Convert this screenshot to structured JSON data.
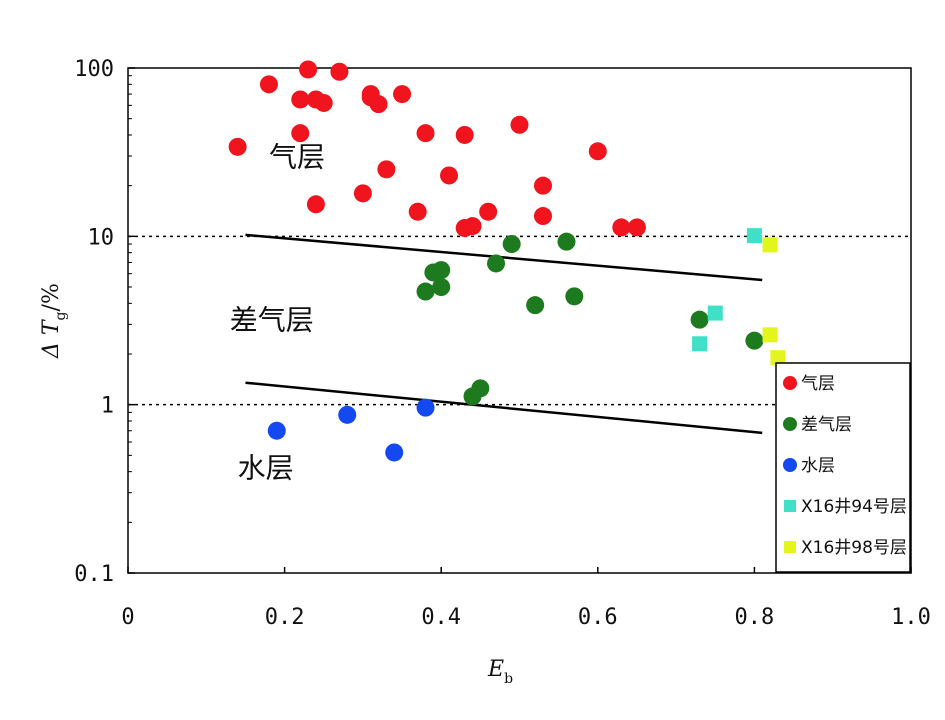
{
  "chart_data": {
    "type": "scatter",
    "xlabel": {
      "main": "E",
      "sub": "b"
    },
    "ylabel": {
      "prefix": "Δ T",
      "sub": "g",
      "suffix": "/%"
    },
    "xlim": [
      0,
      1.0
    ],
    "ylim": [
      0.1,
      100
    ],
    "yscale": "log",
    "x_ticks": [
      "0",
      "0.2",
      "0.4",
      "0.6",
      "0.8",
      "1.0"
    ],
    "y_ticks": [
      "0.1",
      "1",
      "10",
      "100"
    ],
    "grid": false,
    "legend_position": "bottom-right",
    "reference_lines": [
      {
        "style": "dotted",
        "y": 10
      },
      {
        "style": "dotted",
        "y": 1
      }
    ],
    "boundary_lines": [
      {
        "style": "solid",
        "x": [
          0.15,
          0.81
        ],
        "y": [
          10.2,
          5.5
        ]
      },
      {
        "style": "solid",
        "x": [
          0.15,
          0.81
        ],
        "y": [
          1.35,
          0.68
        ]
      }
    ],
    "region_labels": [
      {
        "text": "气层",
        "x": 0.18,
        "y": 26
      },
      {
        "text": "差气层",
        "x": 0.13,
        "y": 2.8
      },
      {
        "text": "水层",
        "x": 0.14,
        "y": 0.37
      }
    ],
    "series": [
      {
        "name": "气层",
        "color": "#f0141e",
        "marker": "circle",
        "points": [
          [
            0.14,
            34
          ],
          [
            0.18,
            80
          ],
          [
            0.22,
            65
          ],
          [
            0.23,
            98
          ],
          [
            0.24,
            65
          ],
          [
            0.25,
            62
          ],
          [
            0.27,
            95
          ],
          [
            0.31,
            70
          ],
          [
            0.31,
            67
          ],
          [
            0.32,
            61
          ],
          [
            0.35,
            70
          ],
          [
            0.22,
            41
          ],
          [
            0.24,
            15.5
          ],
          [
            0.3,
            18
          ],
          [
            0.33,
            25
          ],
          [
            0.37,
            14
          ],
          [
            0.38,
            41
          ],
          [
            0.41,
            23
          ],
          [
            0.43,
            40
          ],
          [
            0.43,
            11.2
          ],
          [
            0.44,
            11.5
          ],
          [
            0.46,
            14
          ],
          [
            0.5,
            46
          ],
          [
            0.53,
            20
          ],
          [
            0.53,
            13.2
          ],
          [
            0.6,
            32
          ],
          [
            0.63,
            11.3
          ],
          [
            0.65,
            11.3
          ]
        ]
      },
      {
        "name": "差气层",
        "color": "#1e7a1e",
        "marker": "circle",
        "points": [
          [
            0.38,
            4.7
          ],
          [
            0.39,
            6.1
          ],
          [
            0.4,
            6.3
          ],
          [
            0.4,
            5.0
          ],
          [
            0.47,
            6.9
          ],
          [
            0.49,
            9.0
          ],
          [
            0.52,
            3.9
          ],
          [
            0.56,
            9.3
          ],
          [
            0.57,
            4.4
          ],
          [
            0.73,
            3.2
          ],
          [
            0.8,
            2.4
          ],
          [
            0.44,
            1.12
          ],
          [
            0.45,
            1.25
          ]
        ]
      },
      {
        "name": "水层",
        "color": "#1448f0",
        "marker": "circle",
        "points": [
          [
            0.19,
            0.7
          ],
          [
            0.28,
            0.87
          ],
          [
            0.34,
            0.52
          ],
          [
            0.38,
            0.96
          ]
        ]
      },
      {
        "name": "X16井94号层",
        "color": "#40e0c8",
        "marker": "square",
        "points": [
          [
            0.73,
            2.3
          ],
          [
            0.75,
            3.5
          ],
          [
            0.8,
            10.1
          ]
        ]
      },
      {
        "name": "X16井98号层",
        "color": "#e4f51e",
        "marker": "square",
        "points": [
          [
            0.82,
            8.9
          ],
          [
            0.82,
            2.6
          ],
          [
            0.83,
            1.9
          ]
        ]
      }
    ]
  }
}
